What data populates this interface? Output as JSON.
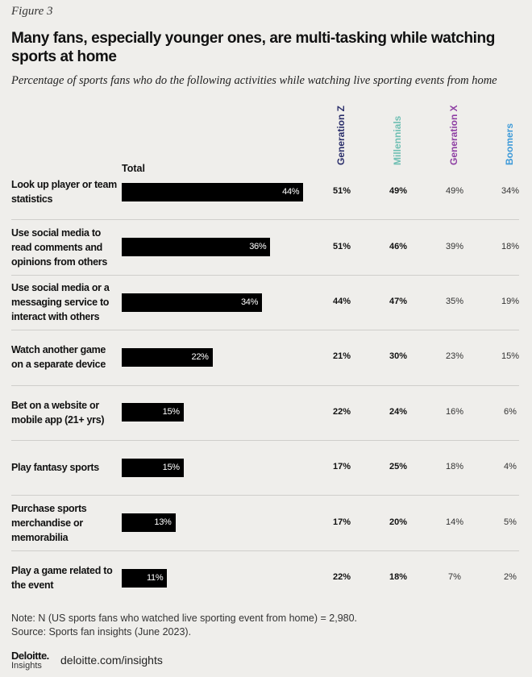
{
  "chart_data": {
    "type": "bar",
    "figure_label": "Figure 3",
    "title": "Many fans, especially younger ones, are multi-tasking while watching sports at home",
    "subtitle": "Percentage of sports fans who do the following activities while watching live sporting events from home",
    "total_label": "Total",
    "color": "#000000",
    "categories": [
      "Look up player or team statistics",
      "Use social media to read comments and opinions from others",
      "Use social media or a messaging service to interact with others",
      "Watch another game on a separate device",
      "Bet on a website or mobile app (21+ yrs)",
      "Play fantasy sports",
      "Purchase sports merchandise or memorabilia",
      "Play a game related to the event"
    ],
    "values": [
      44,
      36,
      34,
      22,
      15,
      15,
      13,
      11
    ],
    "value_labels": [
      "44%",
      "36%",
      "34%",
      "22%",
      "15%",
      "15%",
      "13%",
      "11%"
    ],
    "series": [
      {
        "name": "Generation Z",
        "color": "#2b2f6b",
        "values": [
          51,
          51,
          44,
          21,
          22,
          17,
          17,
          22
        ],
        "value_labels": [
          "51%",
          "51%",
          "44%",
          "21%",
          "22%",
          "17%",
          "17%",
          "22%"
        ]
      },
      {
        "name": "Millennials",
        "color": "#6fbfb3",
        "values": [
          49,
          46,
          47,
          30,
          24,
          25,
          20,
          18
        ],
        "value_labels": [
          "49%",
          "46%",
          "47%",
          "30%",
          "24%",
          "25%",
          "20%",
          "18%"
        ]
      },
      {
        "name": "Generation X",
        "color": "#8e3fa3",
        "values": [
          49,
          39,
          35,
          23,
          16,
          18,
          14,
          7
        ],
        "value_labels": [
          "49%",
          "39%",
          "35%",
          "23%",
          "16%",
          "18%",
          "14%",
          "7%"
        ]
      },
      {
        "name": "Boomers",
        "color": "#3f9bd9",
        "values": [
          34,
          18,
          19,
          15,
          6,
          4,
          5,
          2
        ],
        "value_labels": [
          "34%",
          "18%",
          "19%",
          "15%",
          "6%",
          "4%",
          "5%",
          "2%"
        ]
      }
    ],
    "note": "Note: N (US sports fans who watched live sporting event from home) = 2,980.",
    "source": "Source: Sports fan insights (June 2023).",
    "brand": "Deloitte.",
    "brand_sub": "Insights",
    "url": "deloitte.com/insights"
  }
}
